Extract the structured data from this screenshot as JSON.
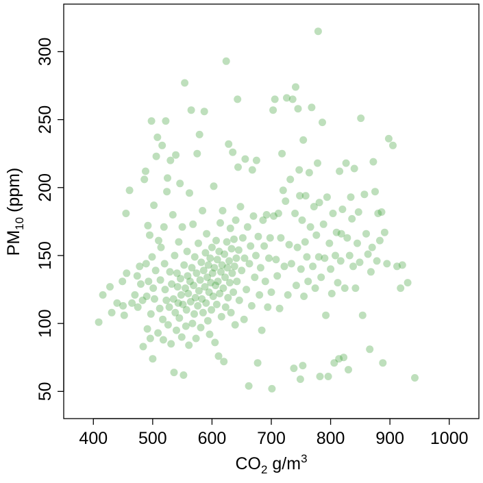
{
  "chart_data": {
    "type": "scatter",
    "title": "",
    "xlabel": {
      "main": "CO",
      "sub": "2",
      "rest": " g/m",
      "sup": "3"
    },
    "ylabel": {
      "main": "PM",
      "sub": "10",
      "rest": " (ppm)"
    },
    "xlim": [
      350,
      1050
    ],
    "ylim": [
      30,
      335
    ],
    "xticks": [
      400,
      500,
      600,
      700,
      800,
      900,
      1000
    ],
    "yticks": [
      50,
      100,
      150,
      200,
      250,
      300
    ],
    "point_color": "#3a9e34",
    "point_opacity": 0.33,
    "legend": "none",
    "grid": false,
    "points": [
      [
        409,
        101
      ],
      [
        416,
        121
      ],
      [
        428,
        127
      ],
      [
        431,
        108
      ],
      [
        440,
        115
      ],
      [
        449,
        131
      ],
      [
        450,
        113
      ],
      [
        452,
        106
      ],
      [
        455,
        181
      ],
      [
        456,
        137
      ],
      [
        461,
        198
      ],
      [
        465,
        115
      ],
      [
        470,
        121
      ],
      [
        474,
        135
      ],
      [
        475,
        112
      ],
      [
        478,
        142
      ],
      [
        480,
        129
      ],
      [
        483,
        117
      ],
      [
        484,
        83
      ],
      [
        486,
        206
      ],
      [
        488,
        212
      ],
      [
        489,
        144
      ],
      [
        490,
        120
      ],
      [
        491,
        96
      ],
      [
        492,
        172
      ],
      [
        493,
        131
      ],
      [
        495,
        165
      ],
      [
        496,
        89
      ],
      [
        497,
        107
      ],
      [
        498,
        249
      ],
      [
        499,
        149
      ],
      [
        500,
        74
      ],
      [
        501,
        126
      ],
      [
        502,
        187
      ],
      [
        503,
        118
      ],
      [
        505,
        139
      ],
      [
        506,
        223
      ],
      [
        508,
        237
      ],
      [
        509,
        93
      ],
      [
        510,
        161
      ],
      [
        512,
        111
      ],
      [
        513,
        132
      ],
      [
        514,
        156
      ],
      [
        516,
        231
      ],
      [
        517,
        103
      ],
      [
        518,
        88
      ],
      [
        519,
        171
      ],
      [
        520,
        144
      ],
      [
        521,
        125
      ],
      [
        522,
        249
      ],
      [
        523,
        117
      ],
      [
        524,
        197
      ],
      [
        525,
        207
      ],
      [
        526,
        99
      ],
      [
        528,
        112
      ],
      [
        529,
        138
      ],
      [
        530,
        220
      ],
      [
        531,
        85
      ],
      [
        532,
        129
      ],
      [
        534,
        180
      ],
      [
        535,
        118
      ],
      [
        536,
        64
      ],
      [
        537,
        150
      ],
      [
        538,
        108
      ],
      [
        539,
        224
      ],
      [
        540,
        95
      ],
      [
        541,
        137
      ],
      [
        542,
        127
      ],
      [
        543,
        115
      ],
      [
        544,
        160
      ],
      [
        545,
        104
      ],
      [
        546,
        203
      ],
      [
        547,
        133
      ],
      [
        548,
        121
      ],
      [
        549,
        90
      ],
      [
        550,
        171
      ],
      [
        551,
        114
      ],
      [
        552,
        62
      ],
      [
        553,
        143
      ],
      [
        554,
        277
      ],
      [
        555,
        126
      ],
      [
        556,
        98
      ],
      [
        557,
        110
      ],
      [
        558,
        153
      ],
      [
        559,
        135
      ],
      [
        560,
        122
      ],
      [
        561,
        84
      ],
      [
        562,
        196
      ],
      [
        563,
        131
      ],
      [
        564,
        116
      ],
      [
        565,
        257
      ],
      [
        566,
        141
      ],
      [
        567,
        100
      ],
      [
        568,
        173
      ],
      [
        569,
        128
      ],
      [
        570,
        107
      ],
      [
        571,
        149
      ],
      [
        572,
        119
      ],
      [
        573,
        89
      ],
      [
        574,
        137
      ],
      [
        575,
        225
      ],
      [
        576,
        113
      ],
      [
        577,
        159
      ],
      [
        578,
        124
      ],
      [
        579,
        239
      ],
      [
        580,
        132
      ],
      [
        581,
        97
      ],
      [
        582,
        145
      ],
      [
        583,
        118
      ],
      [
        584,
        183
      ],
      [
        585,
        108
      ],
      [
        586,
        139
      ],
      [
        587,
        256
      ],
      [
        588,
        127
      ],
      [
        589,
        152
      ],
      [
        590,
        115
      ],
      [
        591,
        166
      ],
      [
        592,
        134
      ],
      [
        593,
        102
      ],
      [
        594,
        143
      ],
      [
        595,
        123
      ],
      [
        596,
        92
      ],
      [
        597,
        148
      ],
      [
        598,
        130
      ],
      [
        599,
        110
      ],
      [
        600,
        156
      ],
      [
        601,
        137
      ],
      [
        602,
        120
      ],
      [
        603,
        201
      ],
      [
        604,
        141
      ],
      [
        605,
        86
      ],
      [
        606,
        128
      ],
      [
        607,
        161
      ],
      [
        608,
        114
      ],
      [
        609,
        147
      ],
      [
        610,
        131
      ],
      [
        611,
        76
      ],
      [
        612,
        153
      ],
      [
        613,
        122
      ],
      [
        614,
        174
      ],
      [
        615,
        138
      ],
      [
        616,
        105
      ],
      [
        617,
        143
      ],
      [
        618,
        183
      ],
      [
        619,
        126
      ],
      [
        620,
        72
      ],
      [
        621,
        151
      ],
      [
        622,
        134
      ],
      [
        623,
        112
      ],
      [
        624,
        293
      ],
      [
        625,
        160
      ],
      [
        626,
        141
      ],
      [
        627,
        119
      ],
      [
        628,
        232
      ],
      [
        629,
        146
      ],
      [
        630,
        130
      ],
      [
        631,
        170
      ],
      [
        632,
        108
      ],
      [
        633,
        155
      ],
      [
        634,
        137
      ],
      [
        635,
        226
      ],
      [
        636,
        123
      ],
      [
        637,
        162
      ],
      [
        638,
        142
      ],
      [
        639,
        99
      ],
      [
        640,
        176
      ],
      [
        641,
        148
      ],
      [
        642,
        131
      ],
      [
        643,
        265
      ],
      [
        644,
        215
      ],
      [
        645,
        154
      ],
      [
        646,
        117
      ],
      [
        648,
        186
      ],
      [
        650,
        139
      ],
      [
        652,
        163
      ],
      [
        654,
        103
      ],
      [
        655,
        148
      ],
      [
        656,
        221
      ],
      [
        658,
        125
      ],
      [
        660,
        171
      ],
      [
        662,
        54
      ],
      [
        663,
        144
      ],
      [
        665,
        157
      ],
      [
        667,
        113
      ],
      [
        668,
        213
      ],
      [
        670,
        179
      ],
      [
        672,
        134
      ],
      [
        674,
        150
      ],
      [
        675,
        220
      ],
      [
        677,
        71
      ],
      [
        678,
        164
      ],
      [
        680,
        121
      ],
      [
        682,
        141
      ],
      [
        684,
        95
      ],
      [
        686,
        176
      ],
      [
        688,
        157
      ],
      [
        690,
        131
      ],
      [
        692,
        180
      ],
      [
        694,
        112
      ],
      [
        696,
        148
      ],
      [
        698,
        163
      ],
      [
        700,
        123
      ],
      [
        701,
        52
      ],
      [
        703,
        257
      ],
      [
        704,
        179
      ],
      [
        706,
        265
      ],
      [
        708,
        147
      ],
      [
        710,
        135
      ],
      [
        712,
        181
      ],
      [
        714,
        111
      ],
      [
        716,
        163
      ],
      [
        718,
        225
      ],
      [
        720,
        198
      ],
      [
        722,
        142
      ],
      [
        724,
        190
      ],
      [
        726,
        266
      ],
      [
        728,
        121
      ],
      [
        730,
        158
      ],
      [
        732,
        206
      ],
      [
        734,
        144
      ],
      [
        736,
        265
      ],
      [
        738,
        67
      ],
      [
        740,
        181
      ],
      [
        741,
        274
      ],
      [
        742,
        128
      ],
      [
        744,
        156
      ],
      [
        745,
        258
      ],
      [
        747,
        213
      ],
      [
        748,
        194
      ],
      [
        749,
        59
      ],
      [
        750,
        140
      ],
      [
        752,
        176
      ],
      [
        753,
        69
      ],
      [
        754,
        235
      ],
      [
        755,
        120
      ],
      [
        757,
        160
      ],
      [
        758,
        194
      ],
      [
        760,
        149
      ],
      [
        762,
        131
      ],
      [
        764,
        211
      ],
      [
        766,
        171
      ],
      [
        768,
        259
      ],
      [
        770,
        142
      ],
      [
        772,
        186
      ],
      [
        774,
        126
      ],
      [
        776,
        165
      ],
      [
        778,
        218
      ],
      [
        779,
        315
      ],
      [
        780,
        149
      ],
      [
        781,
        189
      ],
      [
        782,
        61
      ],
      [
        784,
        134
      ],
      [
        786,
        248
      ],
      [
        788,
        173
      ],
      [
        790,
        148
      ],
      [
        792,
        106
      ],
      [
        794,
        193
      ],
      [
        796,
        61
      ],
      [
        798,
        159
      ],
      [
        800,
        140
      ],
      [
        802,
        122
      ],
      [
        804,
        181
      ],
      [
        806,
        71
      ],
      [
        808,
        150
      ],
      [
        810,
        167
      ],
      [
        812,
        130
      ],
      [
        814,
        74
      ],
      [
        815,
        212
      ],
      [
        817,
        146
      ],
      [
        818,
        166
      ],
      [
        820,
        184
      ],
      [
        822,
        75
      ],
      [
        824,
        126
      ],
      [
        826,
        218
      ],
      [
        828,
        163
      ],
      [
        830,
        66
      ],
      [
        832,
        150
      ],
      [
        834,
        193
      ],
      [
        836,
        177
      ],
      [
        838,
        142
      ],
      [
        840,
        214
      ],
      [
        842,
        126
      ],
      [
        845,
        159
      ],
      [
        847,
        182
      ],
      [
        849,
        145
      ],
      [
        851,
        251
      ],
      [
        854,
        106
      ],
      [
        857,
        195
      ],
      [
        860,
        166
      ],
      [
        863,
        151
      ],
      [
        866,
        81
      ],
      [
        868,
        138
      ],
      [
        870,
        156
      ],
      [
        872,
        219
      ],
      [
        875,
        197
      ],
      [
        878,
        146
      ],
      [
        880,
        181
      ],
      [
        883,
        161
      ],
      [
        886,
        182
      ],
      [
        888,
        71
      ],
      [
        891,
        167
      ],
      [
        895,
        144
      ],
      [
        898,
        236
      ],
      [
        905,
        231
      ],
      [
        912,
        142
      ],
      [
        918,
        126
      ],
      [
        921,
        143
      ],
      [
        930,
        130
      ],
      [
        942,
        60
      ]
    ]
  }
}
